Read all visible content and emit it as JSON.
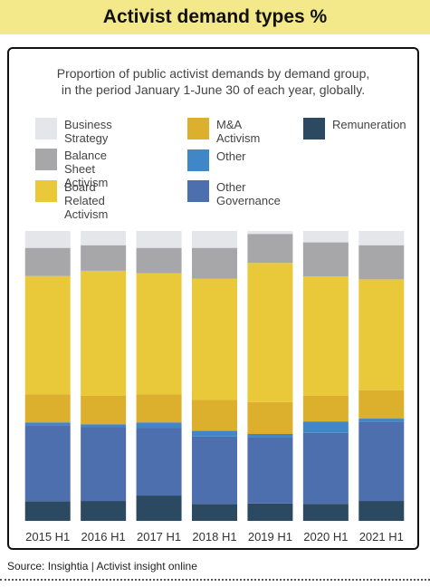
{
  "title": "Activist demand types %",
  "subtitle_lines": [
    "Proportion of public activist demands by demand group,",
    "in the period January 1-June 30 of each year, globally."
  ],
  "source": "Source: Insightia | Activist insight online",
  "legend": [
    {
      "label_lines": [
        "Business Strategy"
      ],
      "color": "#e5e6ea"
    },
    {
      "label_lines": [
        "Balance Sheet",
        "Activism"
      ],
      "color": "#a7a7aa"
    },
    {
      "label_lines": [
        "Board Related",
        "Activism"
      ],
      "color": "#e9c93a"
    },
    {
      "label_lines": [
        "M&A Activism"
      ],
      "color": "#dcb02c"
    },
    {
      "label_lines": [
        "Other"
      ],
      "color": "#3f87c7"
    },
    {
      "label_lines": [
        "Other Governance"
      ],
      "color": "#4e6fae"
    },
    {
      "label_lines": [
        "Remuneration"
      ],
      "color": "#2c4962"
    }
  ],
  "chart_data": {
    "type": "bar",
    "stacked": true,
    "normalized_percent": true,
    "categories": [
      "2015 H1",
      "2016 H1",
      "2017 H1",
      "2018 H1",
      "2019 H1",
      "2020 H1",
      "2021 H1"
    ],
    "series": [
      {
        "name": "Remuneration",
        "color": "#2c4962",
        "values": [
          7,
          7,
          9,
          6,
          6,
          6,
          7
        ]
      },
      {
        "name": "Other Governance",
        "color": "#4e6fae",
        "values": [
          27,
          26,
          24,
          24,
          23,
          25,
          28
        ]
      },
      {
        "name": "Other",
        "color": "#3f87c7",
        "values": [
          1,
          1,
          2,
          2,
          1,
          4,
          1
        ]
      },
      {
        "name": "M&A Activism",
        "color": "#dcb02c",
        "values": [
          10,
          10,
          10,
          11,
          11,
          9,
          10
        ]
      },
      {
        "name": "Board Related Activism",
        "color": "#e9c93a",
        "values": [
          42,
          44,
          43,
          43,
          48,
          42,
          39
        ]
      },
      {
        "name": "Balance Sheet Activism",
        "color": "#a7a7aa",
        "values": [
          10,
          9,
          9,
          11,
          10,
          12,
          12
        ]
      },
      {
        "name": "Business Strategy",
        "color": "#e5e6ea",
        "values": [
          6,
          5,
          6,
          6,
          1,
          4,
          5
        ]
      }
    ]
  }
}
